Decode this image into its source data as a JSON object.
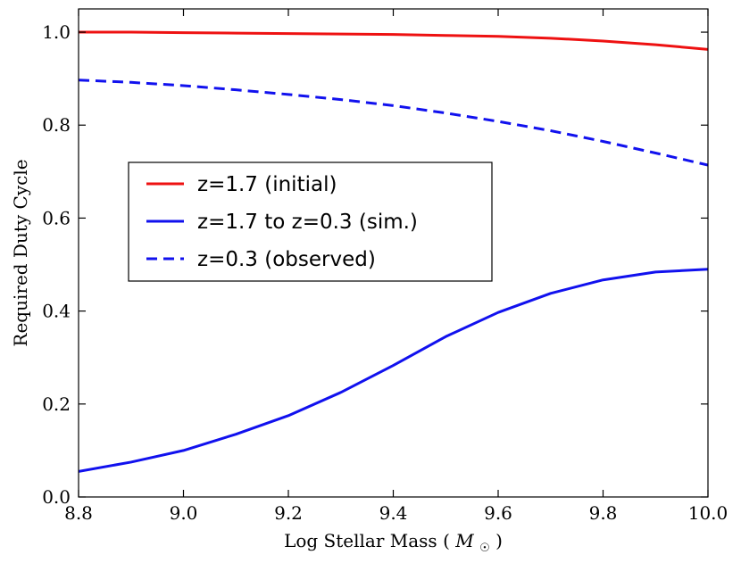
{
  "chart_data": {
    "type": "line",
    "title": "",
    "xlabel": "Log Stellar Mass",
    "xlabel_unit_symbol": "M",
    "xlabel_unit_subscript": "☉",
    "ylabel": "Required Duty Cycle",
    "xlim": [
      8.8,
      10.0
    ],
    "ylim": [
      0.0,
      1.05
    ],
    "x_ticks": [
      8.8,
      9.0,
      9.2,
      9.4,
      9.6,
      9.8,
      10.0
    ],
    "x_tick_labels": [
      "8.8",
      "9.0",
      "9.2",
      "9.4",
      "9.6",
      "9.8",
      "10.0"
    ],
    "y_ticks": [
      0.0,
      0.2,
      0.4,
      0.6,
      0.8,
      1.0
    ],
    "y_tick_labels": [
      "0.0",
      "0.2",
      "0.4",
      "0.6",
      "0.8",
      "1.0"
    ],
    "grid": false,
    "legend_position": "center-left",
    "series": [
      {
        "name": "z=1.7 (initial)",
        "color": "#ee1111",
        "style": "solid",
        "x": [
          8.8,
          8.9,
          9.0,
          9.1,
          9.2,
          9.3,
          9.4,
          9.5,
          9.6,
          9.7,
          9.8,
          9.9,
          10.0
        ],
        "y": [
          1.0,
          1.0,
          0.999,
          0.998,
          0.997,
          0.996,
          0.995,
          0.993,
          0.991,
          0.987,
          0.981,
          0.973,
          0.963
        ]
      },
      {
        "name": "z=1.7 to z=0.3 (sim.)",
        "color": "#1111ee",
        "style": "solid",
        "x": [
          8.8,
          8.9,
          9.0,
          9.1,
          9.2,
          9.3,
          9.4,
          9.5,
          9.6,
          9.7,
          9.8,
          9.9,
          10.0
        ],
        "y": [
          0.055,
          0.075,
          0.1,
          0.135,
          0.175,
          0.225,
          0.283,
          0.345,
          0.397,
          0.438,
          0.467,
          0.484,
          0.49
        ]
      },
      {
        "name": "z=0.3 (observed)",
        "color": "#1111ee",
        "style": "dashed",
        "x": [
          8.8,
          8.9,
          9.0,
          9.1,
          9.2,
          9.3,
          9.4,
          9.5,
          9.6,
          9.7,
          9.8,
          9.9,
          10.0
        ],
        "y": [
          0.897,
          0.892,
          0.885,
          0.876,
          0.866,
          0.855,
          0.842,
          0.826,
          0.808,
          0.788,
          0.765,
          0.74,
          0.714
        ]
      }
    ]
  }
}
